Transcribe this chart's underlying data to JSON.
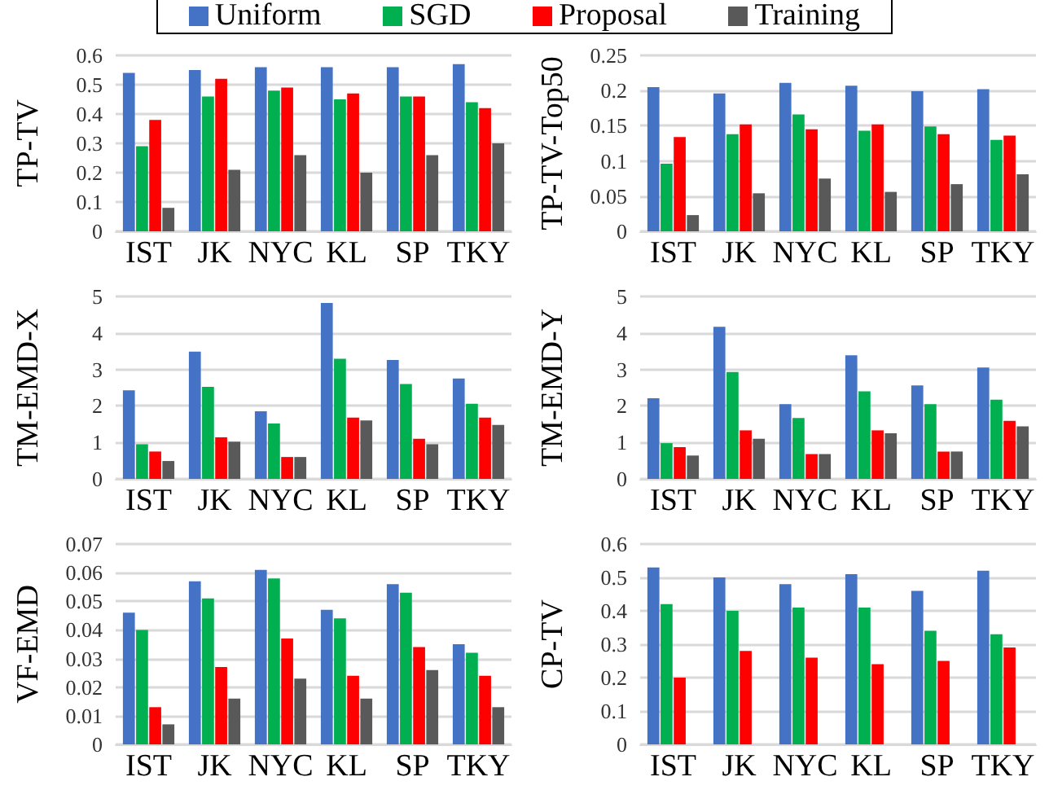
{
  "chart_data": [
    {
      "type": "bar",
      "ylabel": "TP-TV",
      "categories": [
        "IST",
        "JK",
        "NYC",
        "KL",
        "SP",
        "TKY"
      ],
      "legend": "top",
      "grid": "y",
      "ylim": [
        0,
        0.6
      ],
      "yticks": [
        0,
        0.1,
        0.2,
        0.3,
        0.4,
        0.5,
        0.6
      ],
      "series": [
        {
          "name": "Uniform",
          "color": "#4472c4",
          "values": [
            0.54,
            0.55,
            0.56,
            0.56,
            0.56,
            0.57
          ]
        },
        {
          "name": "SGD",
          "color": "#00b050",
          "values": [
            0.29,
            0.46,
            0.48,
            0.45,
            0.46,
            0.44
          ]
        },
        {
          "name": "Proposal",
          "color": "#ff0000",
          "values": [
            0.38,
            0.52,
            0.49,
            0.47,
            0.46,
            0.42
          ]
        },
        {
          "name": "Training",
          "color": "#595959",
          "values": [
            0.08,
            0.21,
            0.26,
            0.2,
            0.26,
            0.3
          ]
        }
      ]
    },
    {
      "type": "bar",
      "ylabel": "TP-TV-Top50",
      "categories": [
        "IST",
        "JK",
        "NYC",
        "KL",
        "SP",
        "TKY"
      ],
      "grid": "y",
      "ylim": [
        0,
        0.25
      ],
      "yticks": [
        0,
        0.05,
        0.1,
        0.15,
        0.2,
        0.25
      ],
      "series": [
        {
          "color": "#4472c4",
          "values": [
            0.205,
            0.196,
            0.211,
            0.207,
            0.199,
            0.202
          ]
        },
        {
          "color": "#00b050",
          "values": [
            0.096,
            0.138,
            0.166,
            0.143,
            0.149,
            0.13
          ]
        },
        {
          "color": "#ff0000",
          "values": [
            0.134,
            0.152,
            0.145,
            0.152,
            0.138,
            0.136
          ]
        },
        {
          "color": "#595959",
          "values": [
            0.023,
            0.054,
            0.075,
            0.056,
            0.067,
            0.081
          ]
        }
      ]
    },
    {
      "type": "bar",
      "ylabel": "TM-EMD-X",
      "categories": [
        "IST",
        "JK",
        "NYC",
        "KL",
        "SP",
        "TKY"
      ],
      "grid": "y",
      "ylim": [
        0,
        5
      ],
      "yticks": [
        0,
        1,
        2,
        3,
        4,
        5
      ],
      "series": [
        {
          "color": "#4472c4",
          "values": [
            2.43,
            3.49,
            1.85,
            4.82,
            3.26,
            2.75
          ]
        },
        {
          "color": "#00b050",
          "values": [
            0.95,
            2.52,
            1.52,
            3.29,
            2.6,
            2.06
          ]
        },
        {
          "color": "#ff0000",
          "values": [
            0.75,
            1.14,
            0.6,
            1.68,
            1.1,
            1.68
          ]
        },
        {
          "color": "#595959",
          "values": [
            0.49,
            1.02,
            0.6,
            1.6,
            0.95,
            1.48
          ]
        }
      ]
    },
    {
      "type": "bar",
      "ylabel": "TM-EMD-Y",
      "categories": [
        "IST",
        "JK",
        "NYC",
        "KL",
        "SP",
        "TKY"
      ],
      "grid": "y",
      "ylim": [
        0,
        5
      ],
      "yticks": [
        0,
        1,
        2,
        3,
        4,
        5
      ],
      "series": [
        {
          "color": "#4472c4",
          "values": [
            2.21,
            4.17,
            2.05,
            3.39,
            2.56,
            3.05
          ]
        },
        {
          "color": "#00b050",
          "values": [
            0.98,
            2.93,
            1.67,
            2.4,
            2.05,
            2.17
          ]
        },
        {
          "color": "#ff0000",
          "values": [
            0.87,
            1.33,
            0.68,
            1.33,
            0.75,
            1.59
          ]
        },
        {
          "color": "#595959",
          "values": [
            0.64,
            1.1,
            0.68,
            1.25,
            0.75,
            1.44
          ]
        }
      ]
    },
    {
      "type": "bar",
      "ylabel": "VF-EMD",
      "categories": [
        "IST",
        "JK",
        "NYC",
        "KL",
        "SP",
        "TKY"
      ],
      "grid": "y",
      "ylim": [
        0,
        0.07
      ],
      "yticks": [
        0,
        0.01,
        0.02,
        0.03,
        0.04,
        0.05,
        0.06,
        0.07
      ],
      "series": [
        {
          "color": "#4472c4",
          "values": [
            0.046,
            0.057,
            0.061,
            0.047,
            0.056,
            0.035
          ]
        },
        {
          "color": "#00b050",
          "values": [
            0.04,
            0.051,
            0.058,
            0.044,
            0.053,
            0.032
          ]
        },
        {
          "color": "#ff0000",
          "values": [
            0.013,
            0.027,
            0.037,
            0.024,
            0.034,
            0.024
          ]
        },
        {
          "color": "#595959",
          "values": [
            0.007,
            0.016,
            0.023,
            0.016,
            0.026,
            0.013
          ]
        }
      ]
    },
    {
      "type": "bar",
      "ylabel": "CP-TV",
      "categories": [
        "IST",
        "JK",
        "NYC",
        "KL",
        "SP",
        "TKY"
      ],
      "grid": "y",
      "ylim": [
        0,
        0.6
      ],
      "yticks": [
        0,
        0.1,
        0.2,
        0.3,
        0.4,
        0.5,
        0.6
      ],
      "series": [
        {
          "color": "#4472c4",
          "values": [
            0.53,
            0.5,
            0.48,
            0.51,
            0.46,
            0.52
          ]
        },
        {
          "color": "#00b050",
          "values": [
            0.42,
            0.4,
            0.41,
            0.41,
            0.34,
            0.33
          ]
        },
        {
          "color": "#ff0000",
          "values": [
            0.2,
            0.28,
            0.26,
            0.24,
            0.25,
            0.29
          ]
        },
        {
          "color": "#595959",
          "values": [
            null,
            null,
            null,
            null,
            null,
            null
          ]
        }
      ]
    }
  ]
}
